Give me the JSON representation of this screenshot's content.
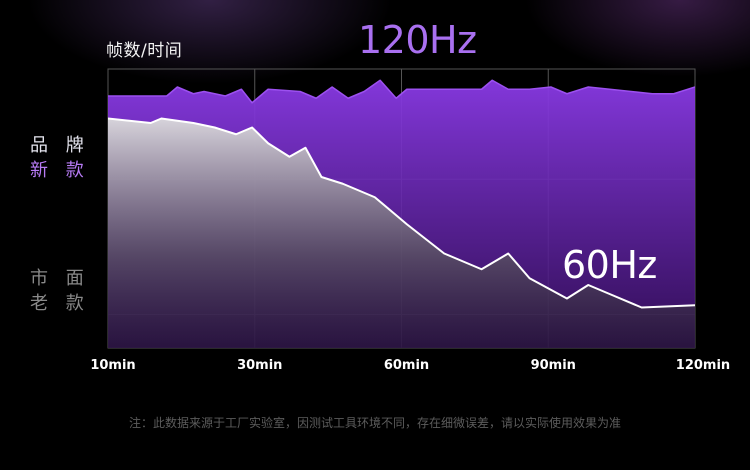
{
  "header": {
    "ylabel": "帧数/时间",
    "title": "120Hz"
  },
  "series_labels": {
    "new": {
      "line1": "品 牌",
      "line2": "新 款"
    },
    "old": {
      "line1": "市 面",
      "line2": "老 款"
    }
  },
  "annotation": "60Hz",
  "footnote": "注：此数据来源于工厂实验室，因测试工具环境不同，存在细微误差，请以实际使用效果为准",
  "colors": {
    "purple_accent": "#a970f0",
    "purple_fill": "#7a2fd0",
    "old_line": "#ffffff",
    "grid": "#555555"
  },
  "chart_data": {
    "type": "area",
    "x_ticks": [
      "10min",
      "30min",
      "60min",
      "90min",
      "120min"
    ],
    "xlim": [
      10,
      120
    ],
    "ylim": [
      0,
      124
    ],
    "grid": true,
    "series": [
      {
        "key": "brand_new",
        "x": [
          10,
          17,
          21,
          23,
          26,
          28,
          32,
          35,
          37,
          40,
          46,
          49,
          52,
          55,
          58,
          61,
          64,
          66,
          68,
          75,
          80,
          82,
          85,
          89,
          93,
          96,
          100,
          112,
          116,
          120
        ],
        "y": [
          112,
          112,
          112,
          116,
          113,
          114,
          112,
          115,
          109,
          115,
          114,
          111,
          116,
          111,
          114,
          119,
          111,
          115,
          115,
          115,
          115,
          119,
          115,
          115,
          116,
          113,
          116,
          113,
          113,
          116
        ]
      },
      {
        "key": "market_old",
        "x": [
          10,
          18,
          20,
          23,
          26,
          30,
          34,
          37,
          40,
          44,
          47,
          50,
          54,
          60,
          66,
          73,
          80,
          85,
          89,
          96,
          100,
          104,
          110,
          120
        ],
        "y": [
          102,
          100,
          102,
          101,
          100,
          98,
          95,
          98,
          91,
          85,
          89,
          76,
          73,
          67,
          55,
          42,
          35,
          42,
          31,
          22,
          28,
          24,
          18,
          19
        ]
      }
    ]
  }
}
